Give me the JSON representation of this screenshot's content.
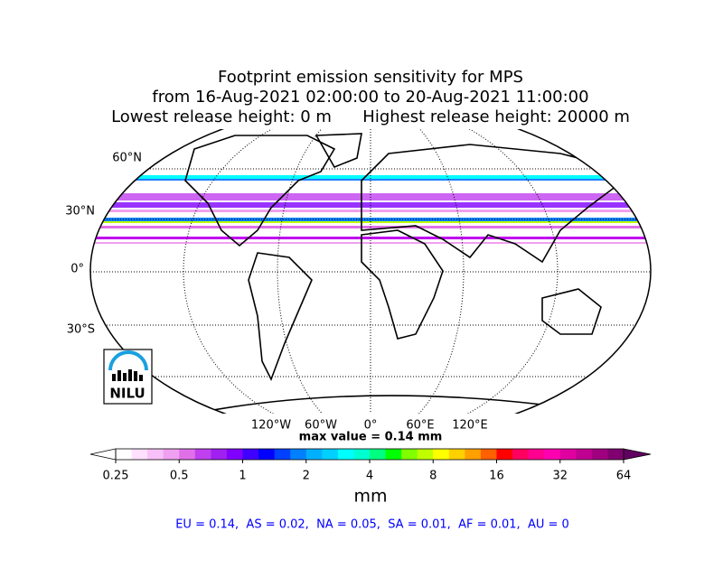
{
  "title": [
    "Footprint emission sensitivity for MPS",
    "from 16-Aug-2021 02:00:00 to 20-Aug-2021 11:00:00",
    "Lowest release height: 0 m      Highest release height: 20000 m"
  ],
  "map": {
    "lat_labels": [
      "60°N",
      "30°N",
      "0°",
      "30°S"
    ],
    "lon_labels": [
      "120°W",
      "60°W",
      "0°",
      "60°E",
      "120°E"
    ],
    "logo": "NILU"
  },
  "max_value": "max value = 0.14 mm",
  "colorbar": {
    "label": "mm",
    "log": true,
    "lim": [
      0.25,
      64
    ],
    "ticks": [
      0.25,
      0.5,
      1,
      2,
      4,
      8,
      16,
      32,
      64
    ],
    "under_color": "#ffffff",
    "over_color": "#600060",
    "colors": [
      "#ffffff",
      "#ffe0ff",
      "#f8c0f8",
      "#f0a0f0",
      "#e070e8",
      "#c040f0",
      "#a020f0",
      "#8000ff",
      "#4000ff",
      "#0000ff",
      "#0040ff",
      "#0080ff",
      "#00b0ff",
      "#00d0ff",
      "#00ffff",
      "#00ffd0",
      "#00ff80",
      "#00ff00",
      "#80ff00",
      "#c0ff00",
      "#ffff00",
      "#ffd000",
      "#ffa000",
      "#ff6000",
      "#ff0000",
      "#ff0060",
      "#ff0090",
      "#ff00b0",
      "#e000a0",
      "#c00090",
      "#a00080",
      "#800070"
    ]
  },
  "footer": "EU = 0.14,  AS = 0.02,  NA = 0.05,  SA = 0.01,  AF = 0.01,  AU = 0"
}
